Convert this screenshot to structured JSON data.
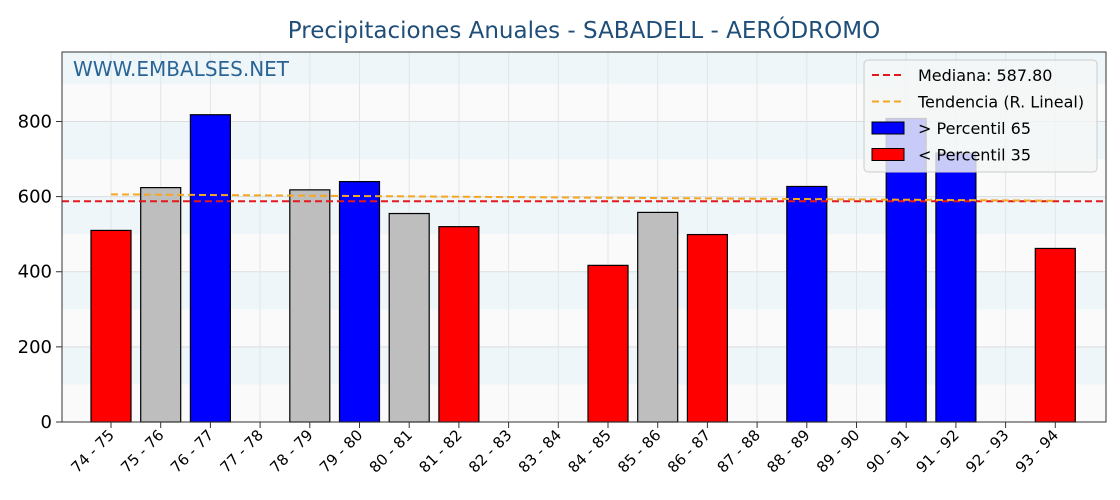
{
  "chart_data": {
    "type": "bar",
    "title": "Precipitaciones Anuales - SABADELL - AERÓDROMO",
    "watermark": "WWW.EMBALSES.NET",
    "xlabel": "",
    "ylabel": "",
    "ylim": [
      0,
      985
    ],
    "yticks": [
      0,
      200,
      400,
      600,
      800
    ],
    "grid": true,
    "legend_position": "top-right",
    "categories": [
      "74 - 75",
      "75 - 76",
      "76 - 77",
      "77 - 78",
      "78 - 79",
      "79 - 80",
      "80 - 81",
      "81 - 82",
      "82 - 83",
      "83 - 84",
      "84 - 85",
      "85 - 86",
      "86 - 87",
      "87 - 88",
      "88 - 89",
      "89 - 90",
      "90 - 91",
      "91 - 92",
      "92 - 93",
      "93 - 94"
    ],
    "values": [
      510,
      624,
      818,
      null,
      618,
      640,
      555,
      520,
      null,
      null,
      417,
      558,
      499,
      null,
      627,
      null,
      808,
      716,
      null,
      462
    ],
    "bar_class": [
      "low",
      "mid",
      "high",
      null,
      "mid",
      "high",
      "mid",
      "low",
      null,
      null,
      "low",
      "mid",
      "low",
      null,
      "high",
      null,
      "high",
      "high",
      null,
      "low"
    ],
    "median": 587.8,
    "trend": {
      "start": 606,
      "end": 589
    },
    "legend": [
      {
        "label": "Mediana: 587.80",
        "style": "dashed-line",
        "color": "#e31a1c"
      },
      {
        "label": "Tendencia (R. Lineal)",
        "style": "dashed-line",
        "color": "#f5a623"
      },
      {
        "label": "> Percentil 65",
        "style": "box",
        "color": "#0000ff"
      },
      {
        "label": "< Percentil 35",
        "style": "box",
        "color": "#ff0000"
      }
    ],
    "colors": {
      "high": "#0000ff",
      "low": "#ff0000",
      "mid": "#bebebe",
      "median_line": "#e31a1c",
      "trend_line": "#f5a623",
      "title": "#1f4e79",
      "watermark": "#2a6496",
      "band_light": "#eef6f9",
      "band_white": "#fafafa"
    }
  }
}
